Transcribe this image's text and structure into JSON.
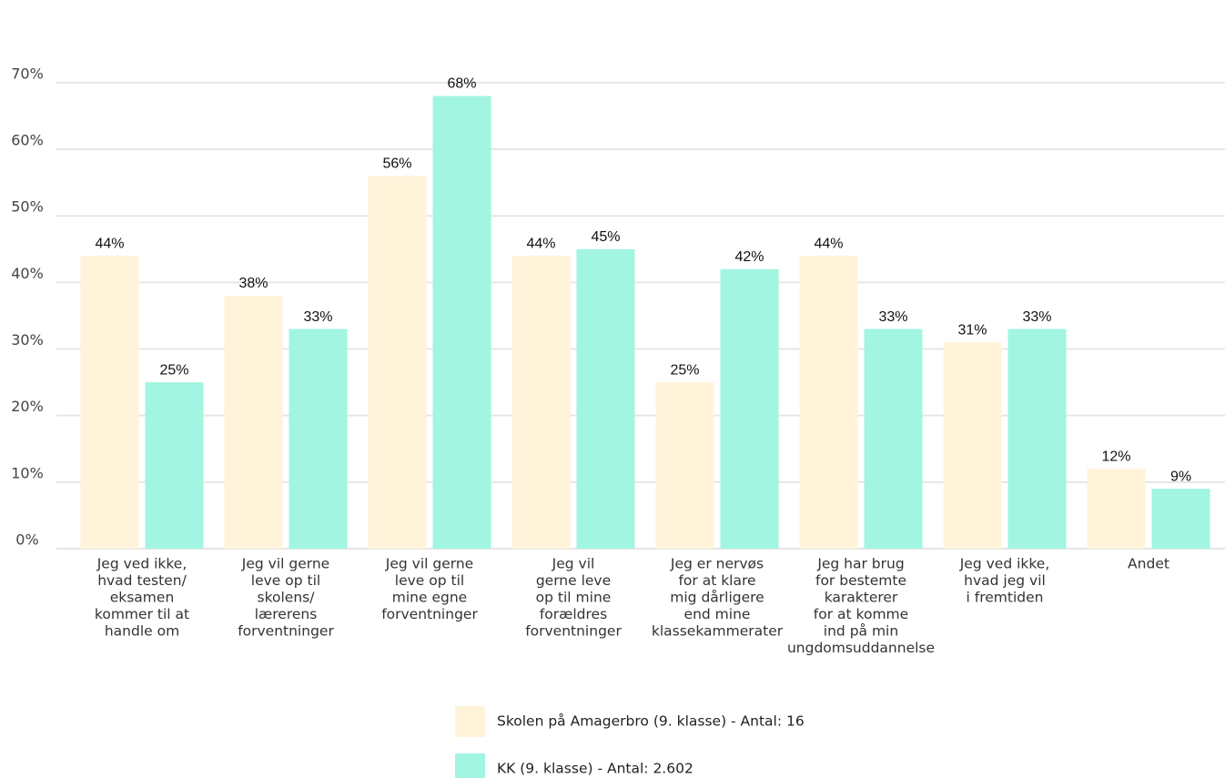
{
  "chart_data": {
    "type": "bar",
    "categories": [
      [
        "Jeg ved ikke,",
        "hvad testen/",
        "eksamen",
        "kommer til at",
        "handle om"
      ],
      [
        "Jeg vil gerne",
        "leve op til",
        "skolens/",
        "lærerens",
        "forventninger"
      ],
      [
        "Jeg vil gerne",
        "leve op til",
        "mine egne",
        "forventninger"
      ],
      [
        "Jeg vil",
        "gerne leve",
        "op til mine",
        "forældres",
        "forventninger"
      ],
      [
        "Jeg er nervøs",
        "for at klare",
        "mig dårligere",
        "end mine",
        "klassekammerater"
      ],
      [
        "Jeg har brug",
        "for bestemte",
        "karakterer",
        "for at komme",
        "ind på min",
        "ungdomsuddannelse"
      ],
      [
        "Jeg ved ikke,",
        "hvad jeg vil",
        "i fremtiden"
      ],
      [
        "Andet"
      ]
    ],
    "series": [
      {
        "name": "Skolen på Amagerbro (9. klasse) - Antal: 16",
        "color": "#fff4da",
        "values": [
          44,
          38,
          56,
          44,
          25,
          44,
          31,
          12
        ],
        "value_labels": [
          "44%",
          "38%",
          "56%",
          "44%",
          "25%",
          "44%",
          "31%",
          "12%"
        ]
      },
      {
        "name": "KK (9. klasse) - Antal: 2.602",
        "color": "#a2f5e0",
        "values": [
          25,
          33,
          68,
          45,
          42,
          33,
          33,
          9
        ],
        "value_labels": [
          "25%",
          "33%",
          "68%",
          "45%",
          "42%",
          "33%",
          "33%",
          "9%"
        ]
      }
    ],
    "ylim": [
      0,
      75
    ],
    "yticks": [
      {
        "value": 0,
        "label": "0%"
      },
      {
        "value": 10,
        "label": "10%"
      },
      {
        "value": 20,
        "label": "20%"
      },
      {
        "value": 30,
        "label": "30%"
      },
      {
        "value": 40,
        "label": "40%"
      },
      {
        "value": 50,
        "label": "50%"
      },
      {
        "value": 60,
        "label": "60%"
      },
      {
        "value": 70,
        "label": "70%"
      }
    ],
    "grid": true
  }
}
